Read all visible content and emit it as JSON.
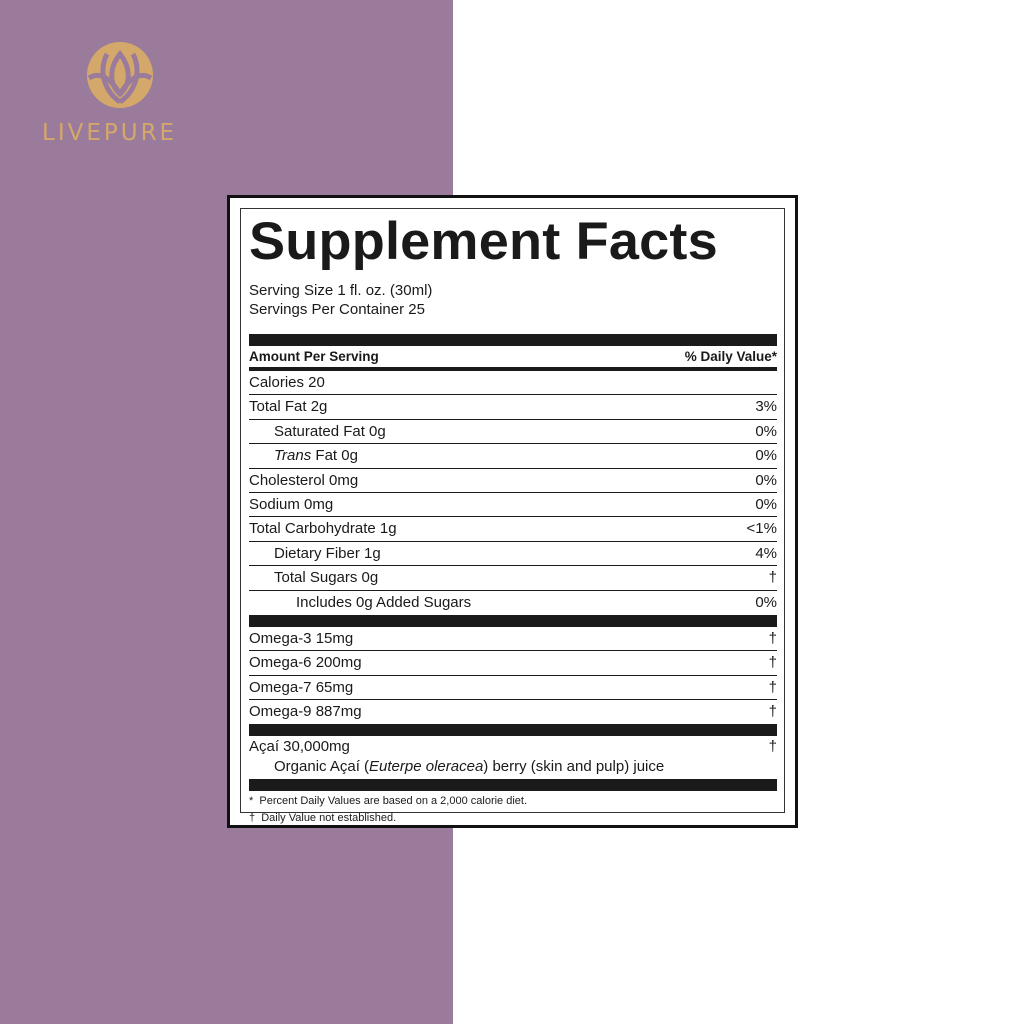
{
  "brand": {
    "name": "LIVEPURE",
    "logo_color": "#d4a86a",
    "panel_color": "#9b7b9b"
  },
  "label": {
    "title": "Supplement Facts",
    "serving_size": "Serving Size 1 fl. oz. (30ml)",
    "servings_per_container": "Servings Per Container 25",
    "amount_header": "Amount Per Serving",
    "dv_header": "% Daily Value*",
    "nutrients": [
      {
        "name": "Calories 20",
        "dv": ""
      },
      {
        "name": "Total Fat 2g",
        "dv": "3%"
      },
      {
        "name": "Saturated Fat 0g",
        "dv": "0%"
      },
      {
        "name_italic": "Trans",
        "name": " Fat 0g",
        "dv": "0%"
      },
      {
        "name": "Cholesterol 0mg",
        "dv": "0%"
      },
      {
        "name": "Sodium 0mg",
        "dv": "0%"
      },
      {
        "name": "Total Carbohydrate 1g",
        "dv": "<1%"
      },
      {
        "name": "Dietary Fiber 1g",
        "dv": "4%"
      },
      {
        "name": "Total Sugars 0g",
        "dv": "†"
      },
      {
        "name": "Includes 0g Added Sugars",
        "dv": "0%"
      }
    ],
    "omegas": [
      {
        "name": "Omega-3 15mg",
        "dv": "†"
      },
      {
        "name": "Omega-6 200mg",
        "dv": "†"
      },
      {
        "name": "Omega-7 65mg",
        "dv": "†"
      },
      {
        "name": "Omega-9 887mg",
        "dv": "†"
      }
    ],
    "acai": {
      "name": "Açaí 30,000mg",
      "dv": "†",
      "desc_pre": "Organic Açaí (",
      "desc_italic": "Euterpe oleracea",
      "desc_post": ") berry (skin and pulp) juice"
    },
    "footnotes": [
      "*  Percent Daily Values are based on a 2,000 calorie diet.",
      "†  Daily Value not established."
    ]
  }
}
